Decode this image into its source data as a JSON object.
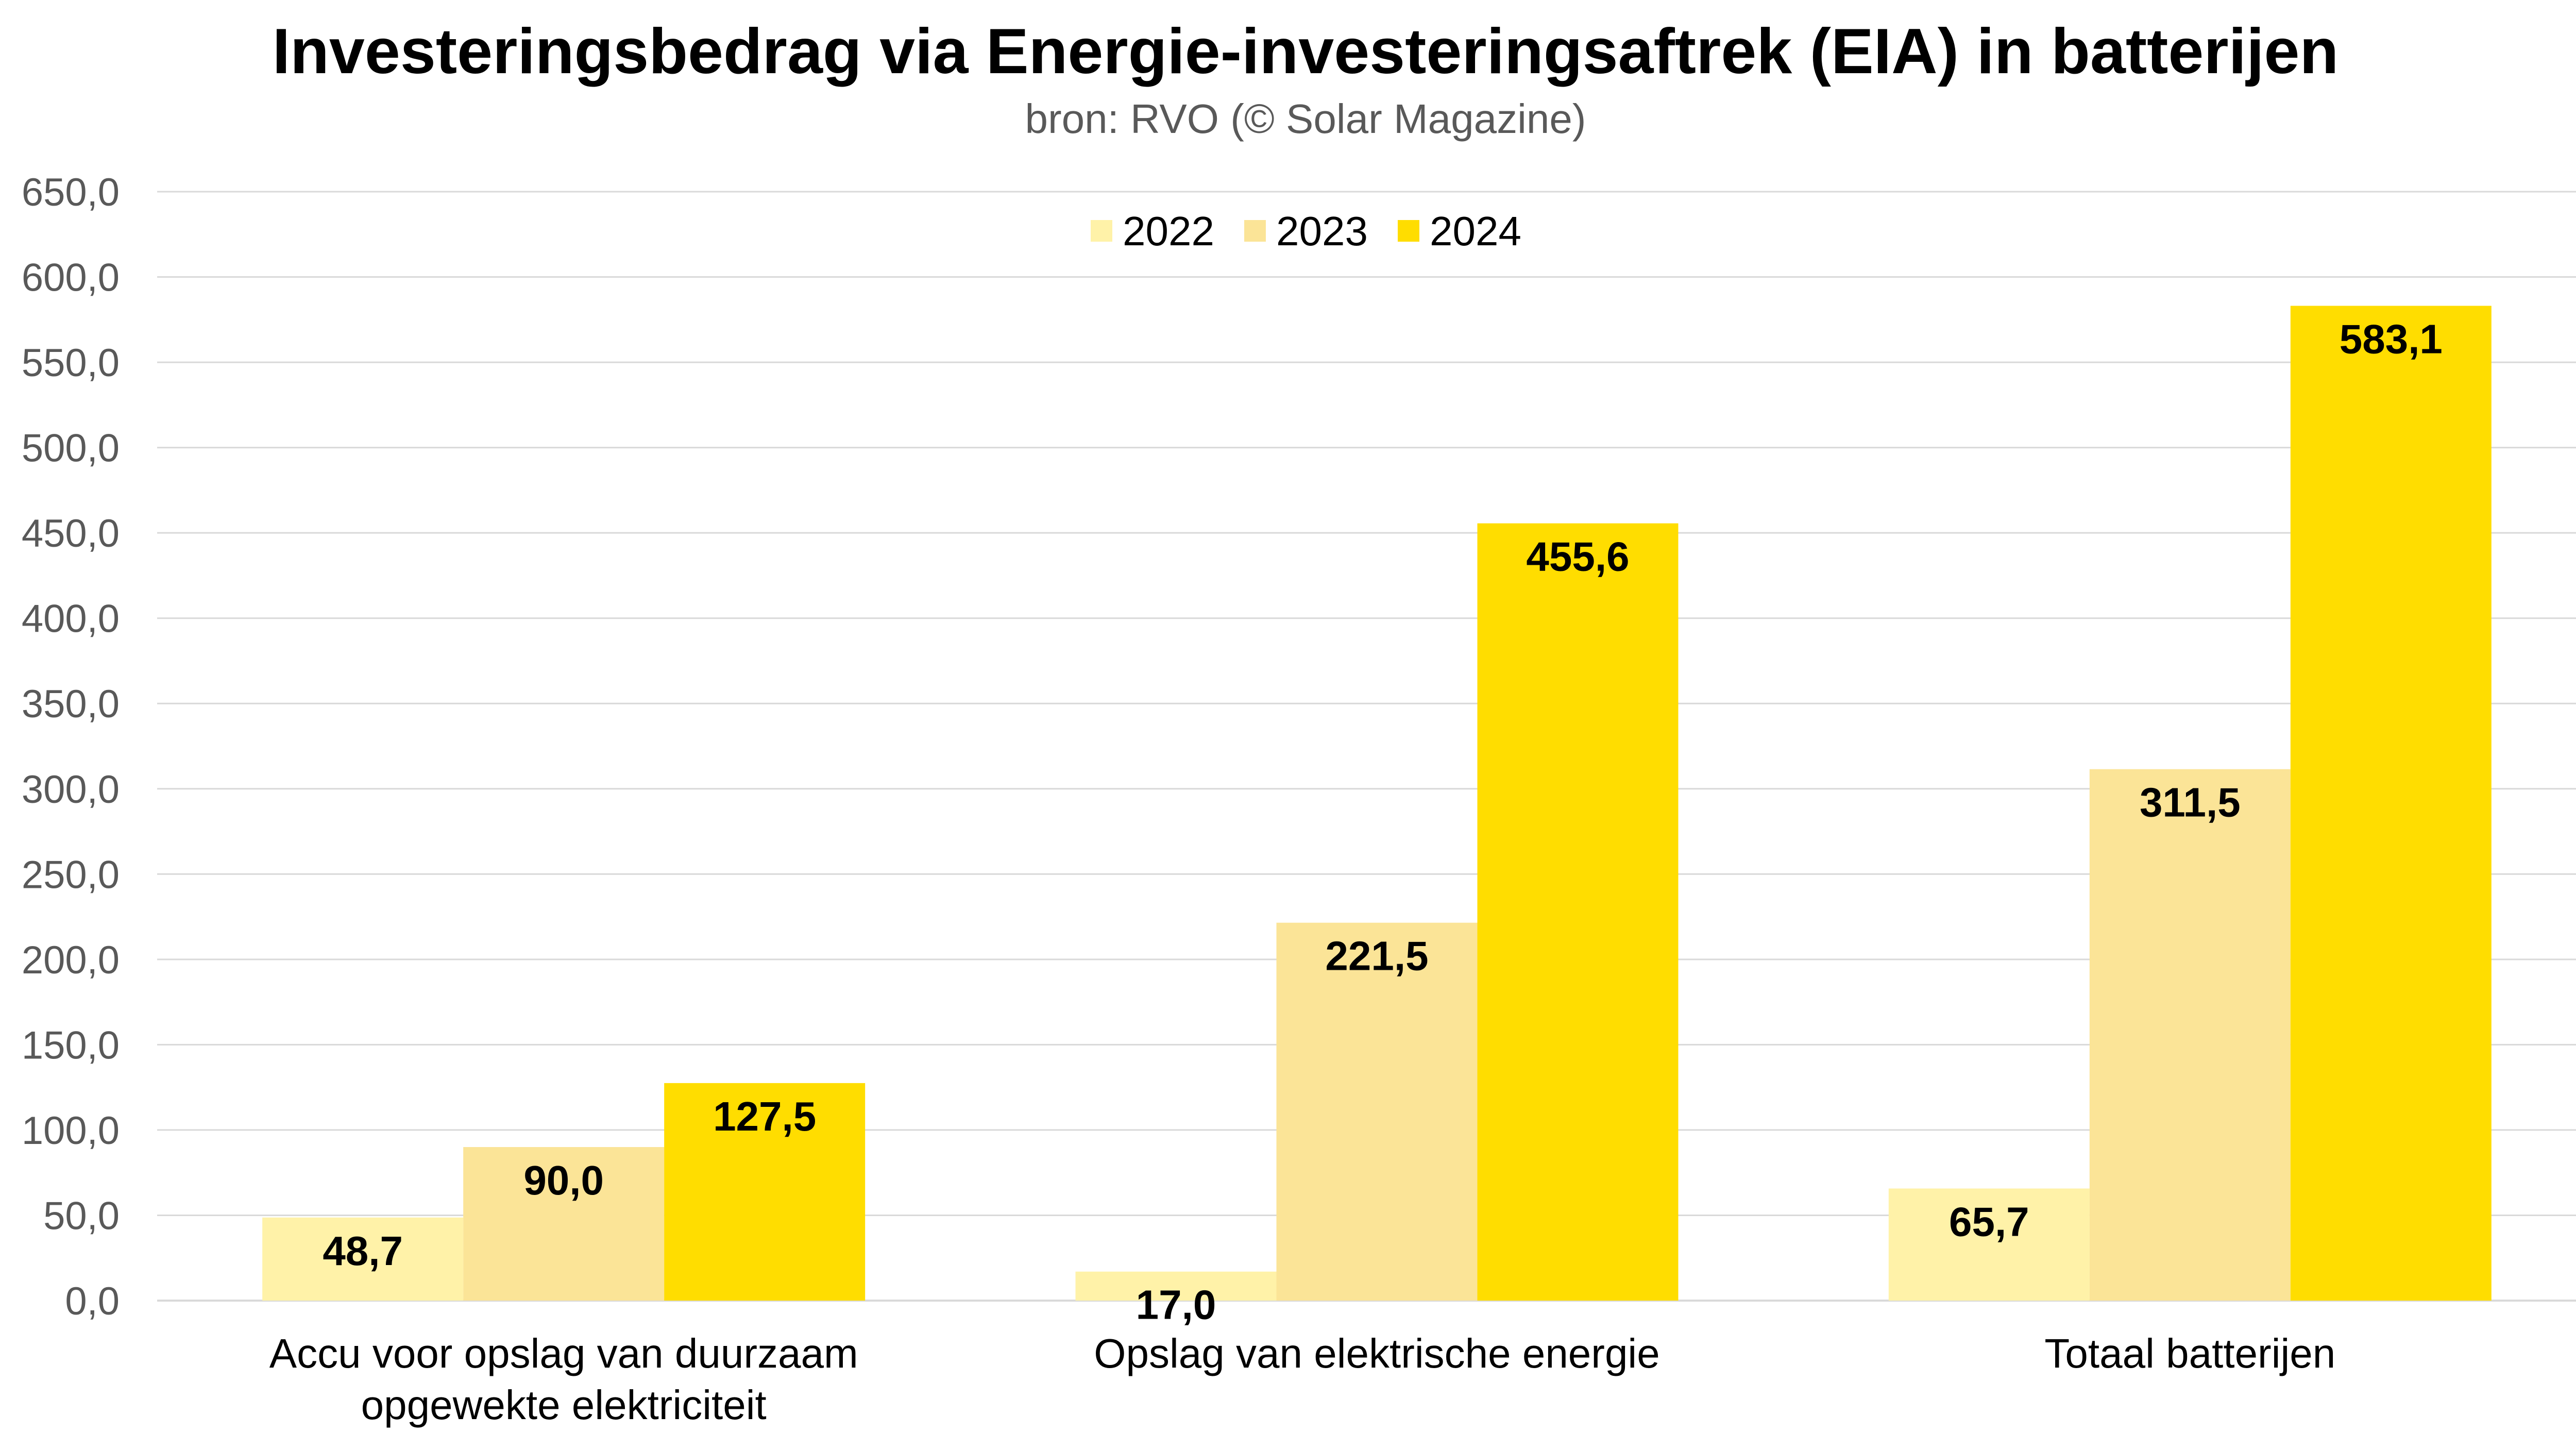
{
  "chart_data": {
    "type": "bar",
    "title": "Investeringsbedrag via Energie-investeringsaftrek (EIA) in batterijen",
    "subtitle": "bron: RVO (© Solar Magazine)",
    "xlabel": "",
    "ylabel": "",
    "ylim": [
      0,
      650
    ],
    "ytick_step": 50,
    "ytick_labels": [
      "0,0",
      "50,0",
      "100,0",
      "150,0",
      "200,0",
      "250,0",
      "300,0",
      "350,0",
      "400,0",
      "450,0",
      "500,0",
      "550,0",
      "600,0",
      "650,0"
    ],
    "grid": true,
    "legend_position": "top-center",
    "categories": [
      [
        "Accu voor opslag van duurzaam",
        "opgewekte elektriciteit"
      ],
      [
        "Opslag van elektrische energie"
      ],
      [
        "Totaal batterijen"
      ]
    ],
    "series": [
      {
        "name": "2022",
        "color": "#FFF2A8",
        "values": [
          48.7,
          17.0,
          65.7
        ],
        "labels": [
          "48,7",
          "17,0",
          "65,7"
        ]
      },
      {
        "name": "2023",
        "color": "#FBE497",
        "values": [
          90.0,
          221.5,
          311.5
        ],
        "labels": [
          "90,0",
          "221,5",
          "311,5"
        ]
      },
      {
        "name": "2024",
        "color": "#FFDD00",
        "values": [
          127.5,
          455.6,
          583.1
        ],
        "labels": [
          "127,5",
          "455,6",
          "583,1"
        ]
      }
    ]
  }
}
